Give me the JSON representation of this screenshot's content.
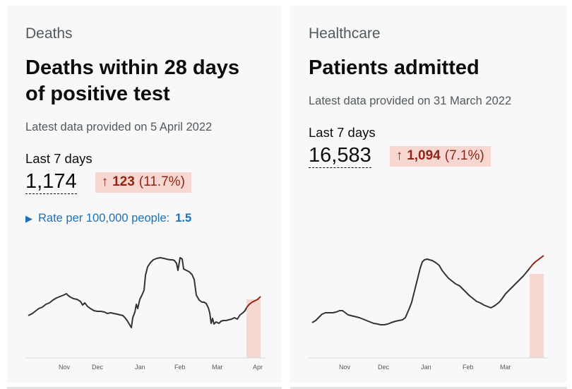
{
  "deaths": {
    "category": "Deaths",
    "title": "Deaths within 28 days of positive test",
    "latest": "Latest data provided on 5 April 2022",
    "last7_label": "Last 7 days",
    "value": "1,174",
    "change_value": "123",
    "change_percent": "(11.7%)",
    "rate_label": "Rate per 100,000 people:",
    "rate_value": "1.5",
    "months": [
      "Nov",
      "Dec",
      "Jan",
      "Feb",
      "Mar",
      "Apr"
    ]
  },
  "healthcare": {
    "category": "Healthcare",
    "title": "Patients admitted",
    "latest": "Latest data provided on 31 March 2022",
    "last7_label": "Last 7 days",
    "value": "16,583",
    "change_value": "1,094",
    "change_percent": "(7.1%)",
    "months": [
      "Nov",
      "Dec",
      "Jan",
      "Feb",
      "Mar"
    ]
  },
  "colors": {
    "line": "#333333",
    "recent_line": "#942514",
    "recent_fill": "#f6d7d2",
    "change_bg": "#f6d7d2",
    "change_text": "#942514",
    "link": "#1d70b8"
  },
  "chart_data": [
    {
      "type": "line",
      "title": "",
      "x_unit": "month",
      "x_ticks": [
        "Nov",
        "Dec",
        "Jan",
        "Feb",
        "Mar",
        "Apr"
      ],
      "series": [
        {
          "values": [
            {
              "x": "Oct 15",
              "y": 110
            },
            {
              "x": "Oct 25",
              "y": 130
            },
            {
              "x": "Nov 1",
              "y": 155
            },
            {
              "x": "Nov 8",
              "y": 145
            },
            {
              "x": "Nov 15",
              "y": 135
            },
            {
              "x": "Nov 22",
              "y": 120
            },
            {
              "x": "Dec 1",
              "y": 120
            },
            {
              "x": "Dec 8",
              "y": 118
            },
            {
              "x": "Dec 15",
              "y": 115
            },
            {
              "x": "Dec 22",
              "y": 105
            },
            {
              "x": "Dec 30",
              "y": 80
            },
            {
              "x": "Jan 5",
              "y": 225
            },
            {
              "x": "Jan 10",
              "y": 265
            },
            {
              "x": "Jan 20",
              "y": 270
            },
            {
              "x": "Jan 30",
              "y": 260
            },
            {
              "x": "Feb 8",
              "y": 210
            },
            {
              "x": "Feb 15",
              "y": 150
            },
            {
              "x": "Feb 22",
              "y": 120
            },
            {
              "x": "Mar 1",
              "y": 95
            },
            {
              "x": "Mar 8",
              "y": 100
            },
            {
              "x": "Mar 15",
              "y": 105
            },
            {
              "x": "Mar 22",
              "y": 135
            },
            {
              "x": "Mar 29",
              "y": 160
            }
          ]
        }
      ]
    },
    {
      "type": "line",
      "title": "",
      "x_unit": "month",
      "x_ticks": [
        "Nov",
        "Dec",
        "Jan",
        "Feb",
        "Mar"
      ],
      "series": [
        {
          "values": [
            {
              "x": "Oct 15",
              "y": 500
            },
            {
              "x": "Oct 25",
              "y": 680
            },
            {
              "x": "Nov 1",
              "y": 700
            },
            {
              "x": "Nov 10",
              "y": 620
            },
            {
              "x": "Nov 20",
              "y": 520
            },
            {
              "x": "Dec 1",
              "y": 480
            },
            {
              "x": "Dec 10",
              "y": 500
            },
            {
              "x": "Dec 20",
              "y": 800
            },
            {
              "x": "Dec 28",
              "y": 1900
            },
            {
              "x": "Jan 5",
              "y": 2050
            },
            {
              "x": "Jan 15",
              "y": 1750
            },
            {
              "x": "Jan 25",
              "y": 1350
            },
            {
              "x": "Feb 5",
              "y": 1100
            },
            {
              "x": "Feb 15",
              "y": 900
            },
            {
              "x": "Feb 25",
              "y": 780
            },
            {
              "x": "Mar 5",
              "y": 1000
            },
            {
              "x": "Mar 15",
              "y": 1500
            },
            {
              "x": "Mar 25",
              "y": 1950
            },
            {
              "x": "Mar 31",
              "y": 2050
            }
          ]
        }
      ]
    }
  ]
}
